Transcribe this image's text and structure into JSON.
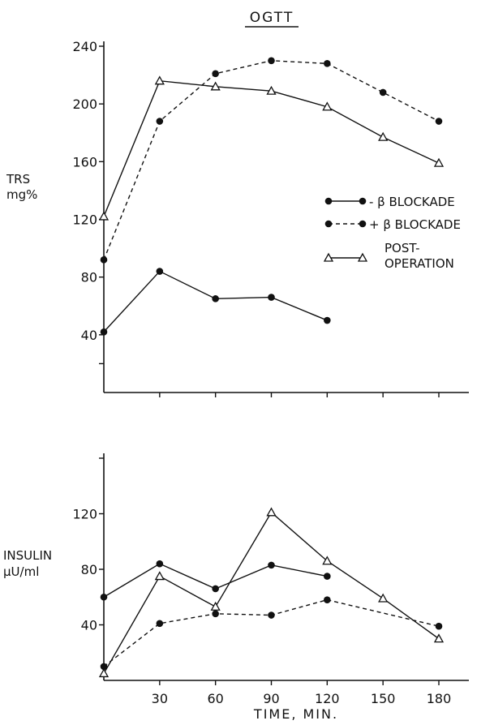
{
  "chart_data": [
    {
      "type": "line",
      "title": "OGTT",
      "ylabel": [
        "TRS",
        "mg%"
      ],
      "xlabel": "",
      "xlim": [
        0,
        180
      ],
      "ylim": [
        0,
        240
      ],
      "yticks": [
        40,
        80,
        120,
        160,
        200,
        240
      ],
      "yticks_labeled": [
        40,
        80,
        120,
        160,
        200,
        240
      ],
      "legend_position": "right",
      "series": [
        {
          "name": "- β BLOCKADE",
          "style": "solid",
          "marker": "dot",
          "x": [
            0,
            30,
            60,
            90,
            120
          ],
          "values": [
            42,
            84,
            65,
            66,
            50
          ]
        },
        {
          "name": "+ β BLOCKADE",
          "style": "dashed",
          "marker": "dot",
          "x": [
            0,
            30,
            60,
            90,
            120,
            150,
            180
          ],
          "values": [
            92,
            188,
            221,
            230,
            228,
            208,
            188
          ]
        },
        {
          "name": "POST-OPERATION",
          "style": "solid",
          "marker": "triangle",
          "x": [
            0,
            30,
            60,
            90,
            120,
            150,
            180
          ],
          "values": [
            122,
            216,
            212,
            209,
            198,
            177,
            159
          ]
        }
      ]
    },
    {
      "type": "line",
      "title": "",
      "ylabel": [
        "INSULIN",
        "μU/ml"
      ],
      "xlabel": "TIME, MIN.",
      "xlim": [
        0,
        180
      ],
      "ylim": [
        0,
        160
      ],
      "xticks": [
        30,
        60,
        90,
        120,
        150,
        180
      ],
      "yticks": [
        40,
        80,
        120,
        160
      ],
      "yticks_labeled": [
        40,
        80,
        120
      ],
      "series": [
        {
          "name": "- β BLOCKADE",
          "style": "solid",
          "marker": "dot",
          "x": [
            0,
            30,
            60,
            90,
            120
          ],
          "values": [
            60,
            84,
            66,
            83,
            75
          ]
        },
        {
          "name": "+ β BLOCKADE",
          "style": "dashed",
          "marker": "dot",
          "x": [
            0,
            30,
            60,
            90,
            120,
            180
          ],
          "values": [
            10,
            41,
            48,
            47,
            58,
            39
          ]
        },
        {
          "name": "POST-OPERATION",
          "style": "solid",
          "marker": "triangle",
          "x": [
            0,
            30,
            60,
            90,
            120,
            150,
            180
          ],
          "values": [
            5,
            75,
            53,
            121,
            86,
            59,
            30
          ]
        }
      ]
    }
  ]
}
